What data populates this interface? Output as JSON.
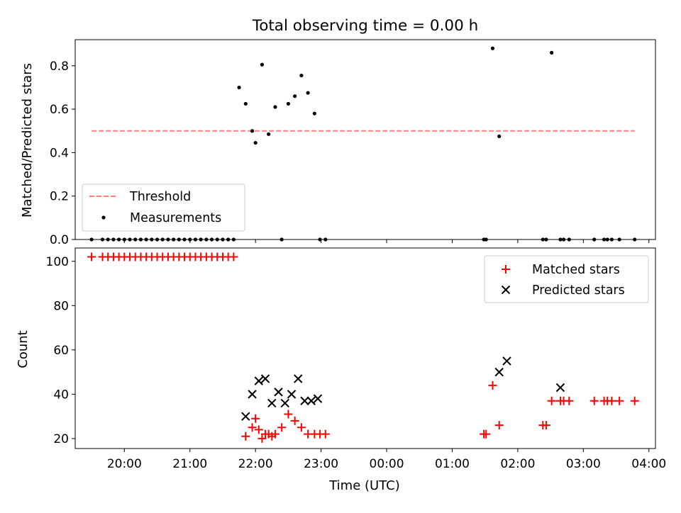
{
  "chart_data": [
    {
      "type": "scatter",
      "title": "Total observing time = 0.00 h",
      "ylabel": "Matched/Predicted stars",
      "ylim": [
        0,
        0.92
      ],
      "yticks": [
        0,
        0.2,
        0.4,
        0.6,
        0.8
      ],
      "ytick_labels": [
        "0.0",
        "0.2",
        "0.4",
        "0.6",
        "0.8"
      ],
      "legend_position": "lower-left",
      "series": [
        {
          "name": "Threshold",
          "kind": "line",
          "style": "dashed",
          "color": "#ff7f7f",
          "x": [
            "19:30",
            "03:47"
          ],
          "y": [
            0.5,
            0.5
          ]
        },
        {
          "name": "Measurements",
          "kind": "scatter",
          "color": "#000000",
          "x": [
            "19:30",
            "19:40",
            "19:45",
            "19:50",
            "19:55",
            "20:00",
            "20:05",
            "20:10",
            "20:15",
            "20:20",
            "20:25",
            "20:30",
            "20:35",
            "20:40",
            "20:45",
            "20:50",
            "20:55",
            "21:00",
            "21:05",
            "21:10",
            "21:15",
            "21:20",
            "21:25",
            "21:30",
            "21:35",
            "21:40",
            "21:45",
            "21:51",
            "21:57",
            "22:00",
            "22:06",
            "22:12",
            "22:18",
            "22:24",
            "22:30",
            "22:36",
            "22:42",
            "22:48",
            "22:54",
            "22:59",
            "23:04",
            "01:29",
            "01:31",
            "01:37",
            "01:43",
            "02:23",
            "02:26",
            "02:31",
            "02:39",
            "02:42",
            "02:47",
            "03:10",
            "03:19",
            "03:22",
            "03:26",
            "03:33",
            "03:47"
          ],
          "y": [
            0,
            0,
            0,
            0,
            0,
            0,
            0,
            0,
            0,
            0,
            0,
            0,
            0,
            0,
            0,
            0,
            0,
            0,
            0,
            0,
            0,
            0,
            0,
            0,
            0,
            0,
            0.7,
            0.625,
            0.5,
            0.445,
            0.805,
            0.485,
            0.61,
            0,
            0.625,
            0.66,
            0.755,
            0.675,
            0.58,
            0,
            0,
            0,
            0,
            0.88,
            0.475,
            0,
            0,
            0.86,
            0,
            0,
            0,
            0,
            0,
            0,
            0,
            0,
            0
          ]
        }
      ]
    },
    {
      "type": "scatter",
      "xlabel": "Time (UTC)",
      "ylabel": "Count",
      "ylim": [
        15.5,
        106
      ],
      "yticks": [
        20,
        40,
        60,
        80,
        100
      ],
      "xticks": [
        "20:00",
        "21:00",
        "22:00",
        "23:00",
        "00:00",
        "01:00",
        "02:00",
        "03:00",
        "04:00"
      ],
      "legend_position": "upper-right",
      "series": [
        {
          "name": "Matched stars",
          "marker": "plus",
          "color": "#ff0000",
          "x": [
            "19:30",
            "19:40",
            "19:45",
            "19:50",
            "19:55",
            "20:00",
            "20:05",
            "20:10",
            "20:15",
            "20:20",
            "20:25",
            "20:30",
            "20:35",
            "20:40",
            "20:45",
            "20:50",
            "20:55",
            "21:00",
            "21:05",
            "21:10",
            "21:15",
            "21:20",
            "21:25",
            "21:30",
            "21:35",
            "21:40",
            "21:51",
            "21:57",
            "22:03",
            "22:09",
            "22:15",
            "22:00",
            "22:06",
            "22:12",
            "22:18",
            "22:24",
            "22:30",
            "22:36",
            "22:42",
            "22:48",
            "22:54",
            "22:59",
            "23:04",
            "01:29",
            "01:31",
            "01:37",
            "01:43",
            "02:23",
            "02:26",
            "02:31",
            "02:39",
            "02:42",
            "02:47",
            "03:10",
            "03:19",
            "03:22",
            "03:26",
            "03:33",
            "03:47"
          ],
          "y": [
            102,
            102,
            102,
            102,
            102,
            102,
            102,
            102,
            102,
            102,
            102,
            102,
            102,
            102,
            102,
            102,
            102,
            102,
            102,
            102,
            102,
            102,
            102,
            102,
            102,
            102,
            21,
            25,
            24,
            22,
            21,
            29,
            20,
            22,
            22,
            25,
            31,
            28,
            25,
            22,
            22,
            22,
            22,
            22,
            22,
            44,
            26,
            26,
            26,
            37,
            37,
            37,
            37,
            37,
            37,
            37,
            37,
            37,
            37
          ]
        },
        {
          "name": "Predicted stars",
          "marker": "x",
          "color": "#000000",
          "x": [
            "21:51",
            "21:57",
            "22:03",
            "22:09",
            "22:15",
            "22:21",
            "22:27",
            "22:33",
            "22:39",
            "22:45",
            "22:51",
            "22:57",
            "01:43",
            "01:50",
            "02:39"
          ],
          "y": [
            30,
            40,
            46,
            47,
            36,
            41,
            36,
            40,
            47,
            37,
            37,
            38,
            50,
            55,
            43
          ]
        }
      ]
    }
  ]
}
